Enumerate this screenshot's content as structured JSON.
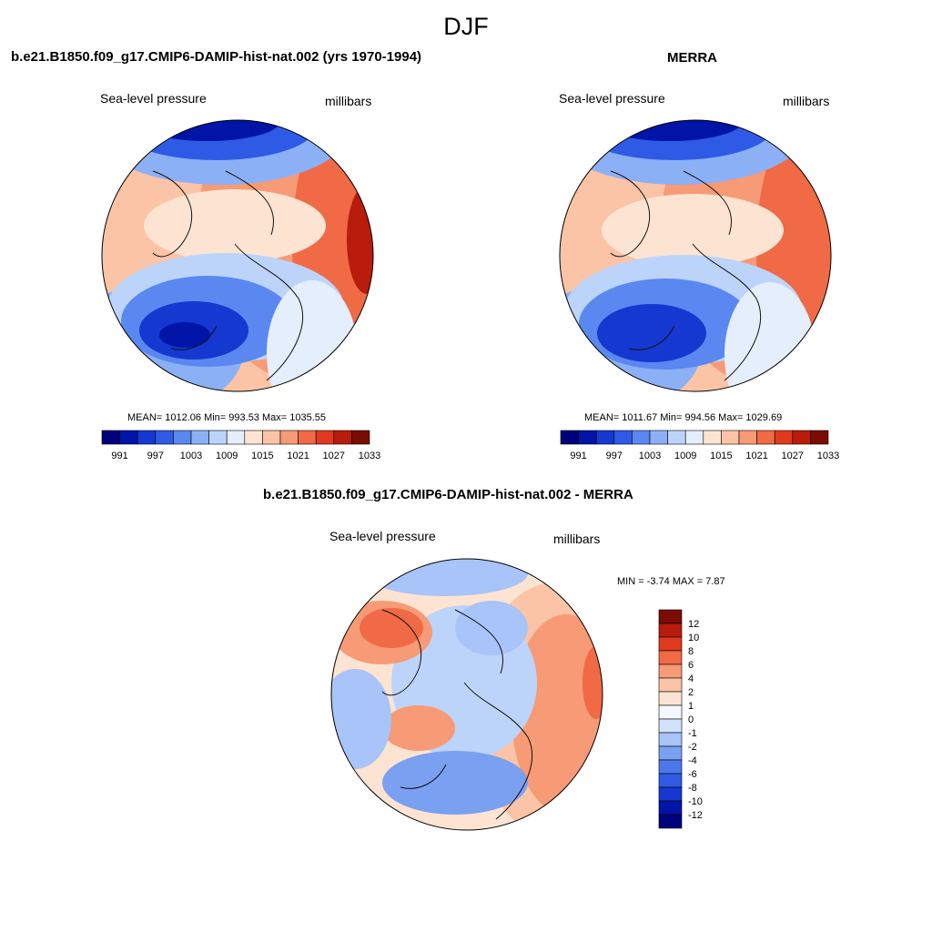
{
  "figure_title": "DJF",
  "panels": [
    {
      "title": "b.e21.B1850.f09_g17.CMIP6-DAMIP-hist-nat.002 (yrs 1970-1994)",
      "left_label": "Sea-level pressure",
      "right_label": "millibars",
      "stats": "MEAN= 1012.06  Min= 993.53  Max= 1035.55"
    },
    {
      "title": "MERRA",
      "left_label": "Sea-level pressure",
      "right_label": "millibars",
      "stats": "MEAN= 1011.67  Min= 994.56  Max= 1029.69"
    },
    {
      "title": "b.e21.B1850.f09_g17.CMIP6-DAMIP-hist-nat.002 - MERRA",
      "left_label": "Sea-level pressure",
      "right_label": "millibars",
      "stats": "MIN =  -3.74 MAX =   7.87"
    }
  ],
  "colorbar_abs": {
    "colors": [
      "#00007a",
      "#0014a8",
      "#1538d0",
      "#2e5ae6",
      "#5a88f0",
      "#8cb0f5",
      "#bcd4fa",
      "#e4eefc",
      "#fde4d2",
      "#fbc4a6",
      "#f79a76",
      "#f06a46",
      "#e03a1e",
      "#b81c0c",
      "#7a0c04"
    ],
    "labels": [
      "991",
      "997",
      "1003",
      "1009",
      "1015",
      "1021",
      "1027",
      "1033"
    ]
  },
  "colorbar_diff": {
    "colors": [
      "#00007a",
      "#0014a8",
      "#1538d0",
      "#2e5ae6",
      "#4a78ec",
      "#7aa0f2",
      "#a8c4f8",
      "#d2e2fc",
      "#f4f8fe",
      "#fde4d2",
      "#fbc4a6",
      "#f79a76",
      "#f06a46",
      "#e03a1e",
      "#b81c0c",
      "#7a0c04"
    ],
    "labels": [
      "12",
      "10",
      "8",
      "6",
      "4",
      "2",
      "1",
      "0",
      "-1",
      "-2",
      "-4",
      "-6",
      "-8",
      "-10",
      "-12"
    ]
  }
}
